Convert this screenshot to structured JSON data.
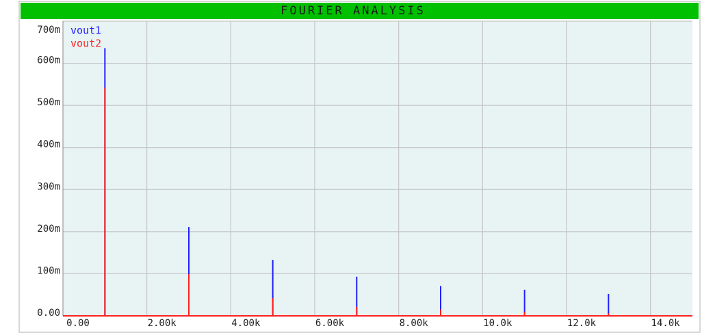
{
  "chart_data": {
    "type": "stem",
    "title": "FOURIER ANALYSIS",
    "x": [
      1000,
      3000,
      5000,
      7000,
      9000,
      11000,
      13000
    ],
    "series": [
      {
        "name": "vout1",
        "color": "#2020ff",
        "values": [
          0.636,
          0.211,
          0.133,
          0.093,
          0.071,
          0.062,
          0.052
        ]
      },
      {
        "name": "vout2",
        "color": "#ff2020",
        "values": [
          0.542,
          0.099,
          0.042,
          0.021,
          0.015,
          0.01,
          0.006
        ]
      }
    ],
    "xlim": [
      0,
      15000
    ],
    "xticks": [
      {
        "value": 0,
        "label": "0.00"
      },
      {
        "value": 2000,
        "label": "2.00k"
      },
      {
        "value": 4000,
        "label": "4.00k"
      },
      {
        "value": 6000,
        "label": "6.00k"
      },
      {
        "value": 8000,
        "label": "8.00k"
      },
      {
        "value": 10000,
        "label": "10.0k"
      },
      {
        "value": 12000,
        "label": "12.0k"
      },
      {
        "value": 14000,
        "label": "14.0k"
      }
    ],
    "ylim": [
      0,
      0.7
    ],
    "yticks": [
      {
        "value": 0,
        "label": "0.00"
      },
      {
        "value": 0.1,
        "label": "100m"
      },
      {
        "value": 0.2,
        "label": "200m"
      },
      {
        "value": 0.3,
        "label": "300m"
      },
      {
        "value": 0.4,
        "label": "400m"
      },
      {
        "value": 0.5,
        "label": "500m"
      },
      {
        "value": 0.6,
        "label": "600m"
      },
      {
        "value": 0.7,
        "label": "700m"
      }
    ],
    "grid": true
  }
}
